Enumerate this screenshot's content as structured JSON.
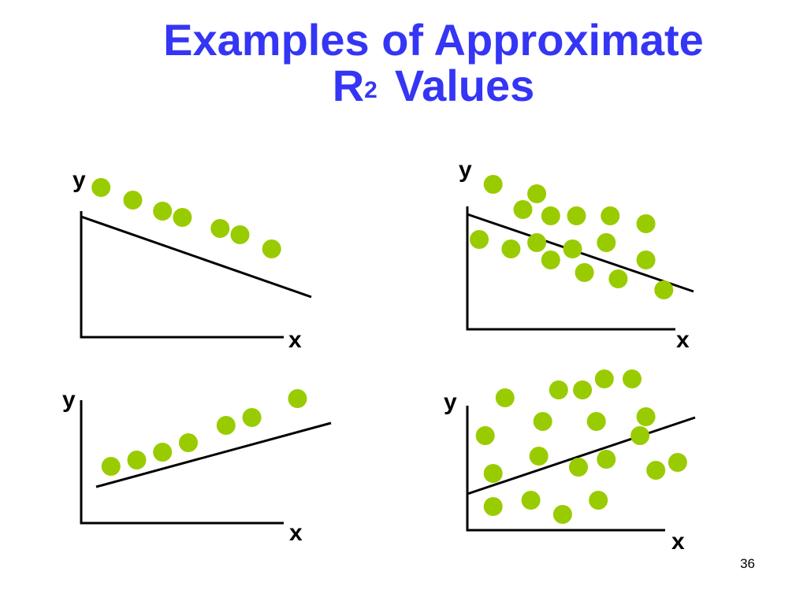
{
  "title": {
    "line1": "Examples of Approximate",
    "line2_base": "R",
    "line2_sup": "2",
    "line2_rest": "Values"
  },
  "slide_number": "36",
  "colors": {
    "title": "#3535f5",
    "point": "#99cc00",
    "line": "#000000"
  },
  "chart_data": [
    {
      "type": "scatter",
      "position": "top-left",
      "xlabel": "x",
      "ylabel": "y",
      "trend": "negative perfect fit",
      "points": [
        [
          1.0,
          9.5
        ],
        [
          2.6,
          8.7
        ],
        [
          4.1,
          8.0
        ],
        [
          5.1,
          7.6
        ],
        [
          7.0,
          6.9
        ],
        [
          8.0,
          6.5
        ],
        [
          9.6,
          5.6
        ]
      ]
    },
    {
      "type": "scatter",
      "position": "top-right",
      "xlabel": "x",
      "ylabel": "y",
      "trend": "negative weak fit",
      "points": [
        [
          1.3,
          9.2
        ],
        [
          3.5,
          8.6
        ],
        [
          2.8,
          7.6
        ],
        [
          4.2,
          7.2
        ],
        [
          5.5,
          7.2
        ],
        [
          7.2,
          7.2
        ],
        [
          9.0,
          6.7
        ],
        [
          0.6,
          5.7
        ],
        [
          2.2,
          5.1
        ],
        [
          3.5,
          5.5
        ],
        [
          4.2,
          4.4
        ],
        [
          5.3,
          5.1
        ],
        [
          7.0,
          5.5
        ],
        [
          5.9,
          3.6
        ],
        [
          7.6,
          3.2
        ],
        [
          9.0,
          4.4
        ],
        [
          9.9,
          2.5
        ]
      ]
    },
    {
      "type": "scatter",
      "position": "bottom-left",
      "xlabel": "x",
      "ylabel": "y",
      "trend": "positive perfect fit",
      "points": [
        [
          1.5,
          3.6
        ],
        [
          2.8,
          4.0
        ],
        [
          4.1,
          4.5
        ],
        [
          5.4,
          5.1
        ],
        [
          7.3,
          6.2
        ],
        [
          8.6,
          6.7
        ],
        [
          10.9,
          7.9
        ]
      ]
    },
    {
      "type": "scatter",
      "position": "bottom-right",
      "xlabel": "x",
      "ylabel": "y",
      "trend": "positive weak fit",
      "points": [
        [
          1.9,
          8.4
        ],
        [
          4.6,
          8.9
        ],
        [
          5.8,
          8.9
        ],
        [
          6.9,
          9.6
        ],
        [
          8.3,
          9.6
        ],
        [
          0.9,
          6.0
        ],
        [
          3.8,
          6.9
        ],
        [
          6.5,
          6.9
        ],
        [
          9.0,
          7.2
        ],
        [
          3.6,
          4.7
        ],
        [
          5.6,
          4.0
        ],
        [
          7.0,
          4.5
        ],
        [
          8.7,
          6.0
        ],
        [
          9.5,
          3.8
        ],
        [
          10.6,
          4.3
        ],
        [
          1.3,
          3.6
        ],
        [
          1.3,
          1.5
        ],
        [
          3.2,
          1.9
        ],
        [
          4.8,
          1.0
        ],
        [
          6.6,
          1.9
        ]
      ]
    }
  ]
}
